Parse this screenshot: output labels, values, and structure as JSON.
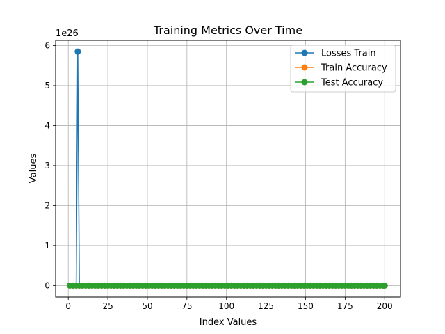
{
  "chart_data": {
    "type": "line",
    "title": "Training Metrics Over Time",
    "xlabel": "Index Values",
    "ylabel": "Values",
    "y_offset_label": "1e26",
    "y_scale_factor": 1e+26,
    "xlim": [
      -8,
      210
    ],
    "ylim": [
      -0.29,
      6.13
    ],
    "x_ticks": [
      0,
      25,
      50,
      75,
      100,
      125,
      150,
      175,
      200
    ],
    "y_ticks": [
      0,
      1,
      2,
      3,
      4,
      5,
      6
    ],
    "grid": true,
    "legend_position": "top-right",
    "x_start": 1,
    "x_end": 200,
    "x_step": 2,
    "series": [
      {
        "name": "Losses Train",
        "color": "#1f77b4",
        "marker": "circle",
        "points": [
          [
            1,
            0
          ],
          [
            3,
            0
          ],
          [
            5,
            0
          ],
          [
            6,
            5.85
          ],
          [
            7,
            0
          ]
        ],
        "rest_value": 0
      },
      {
        "name": "Train Accuracy",
        "color": "#ff7f0e",
        "marker": "circle",
        "rest_value": 0
      },
      {
        "name": "Test Accuracy",
        "color": "#2ca02c",
        "marker": "circle",
        "rest_value": 0
      }
    ]
  }
}
